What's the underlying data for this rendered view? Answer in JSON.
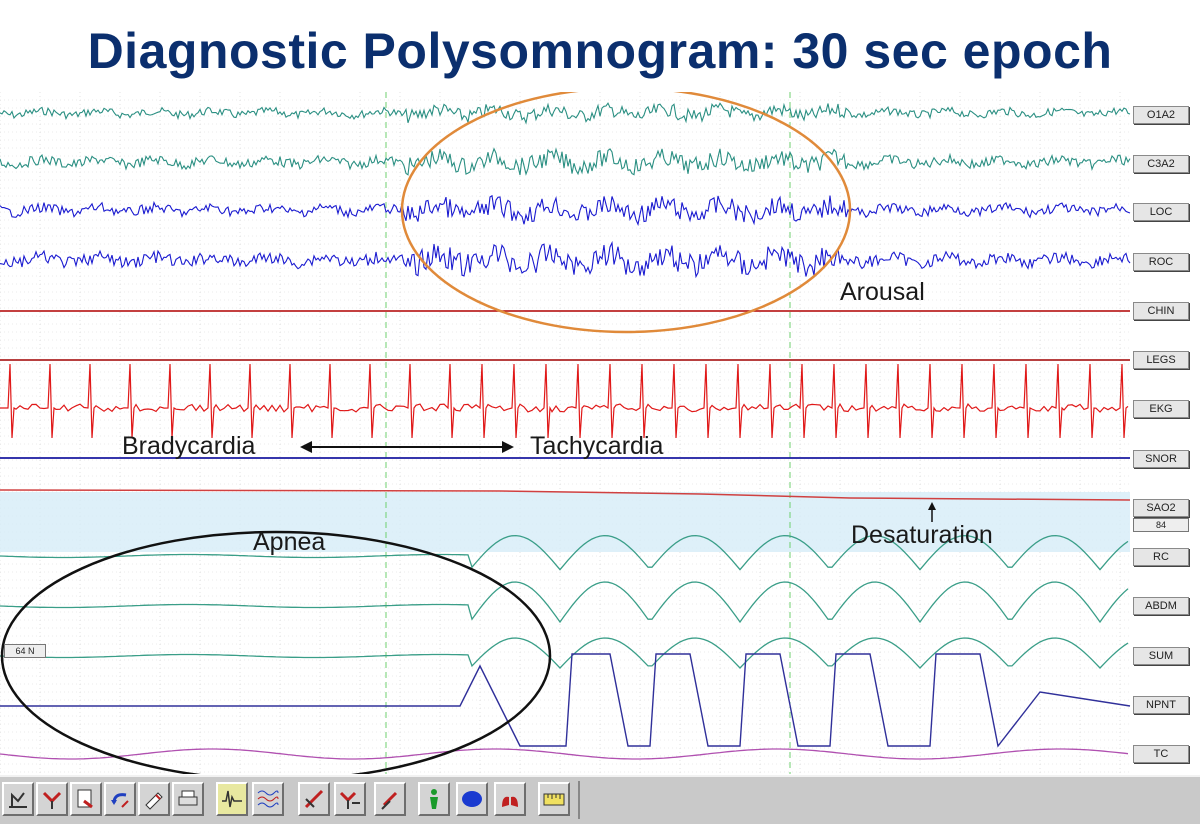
{
  "title": "Diagnostic Polysomnogram: 30 sec epoch",
  "channels": [
    {
      "label": "O1A2",
      "color": "#2a8f82"
    },
    {
      "label": "C3A2",
      "color": "#2a8f82"
    },
    {
      "label": "LOC",
      "color": "#1a1ad0"
    },
    {
      "label": "ROC",
      "color": "#1a1ad0"
    },
    {
      "label": "CHIN",
      "color": "#b00000"
    },
    {
      "label": "LEGS",
      "color": "#a00000"
    },
    {
      "label": "EKG",
      "color": "#e01818"
    },
    {
      "label": "SNOR",
      "color": "#1a1aa0"
    },
    {
      "label": "SAO2",
      "color": "#d04040"
    },
    {
      "label": "RC",
      "color": "#3a9e88"
    },
    {
      "label": "ABDM",
      "color": "#3a9e88"
    },
    {
      "label": "SUM",
      "color": "#3a9e88"
    },
    {
      "label": "NPNT",
      "color": "#30309a"
    },
    {
      "label": "TC",
      "color": "#b050b0"
    }
  ],
  "sao2_value": "84",
  "sum_scale": "64 N",
  "annotations": {
    "arousal": "Arousal",
    "bradycardia": "Bradycardia",
    "tachycardia": "Tachycardia",
    "apnea": "Apnea",
    "desaturation": "Desaturation"
  },
  "colors": {
    "title": "#0b2f6e",
    "arousal_ellipse": "#e08a3a",
    "apnea_ellipse": "#111111",
    "eeg": "#2a8f82",
    "eog": "#1a1ad0",
    "ekg": "#e01818"
  },
  "toolbar": {
    "buttons": [
      {
        "name": "tool-1-icon"
      },
      {
        "name": "tool-2-icon"
      },
      {
        "name": "tool-3-icon"
      },
      {
        "name": "tool-4-icon"
      },
      {
        "name": "tool-5-icon"
      },
      {
        "name": "print-icon"
      },
      {
        "name": "waveform-icon",
        "active": true
      },
      {
        "name": "montage-icon"
      },
      {
        "name": "tool-9-icon"
      },
      {
        "name": "tool-10-icon"
      },
      {
        "name": "tool-11-icon"
      },
      {
        "name": "patient-icon"
      },
      {
        "name": "brain-icon"
      },
      {
        "name": "lungs-icon"
      },
      {
        "name": "ruler-icon"
      }
    ]
  }
}
